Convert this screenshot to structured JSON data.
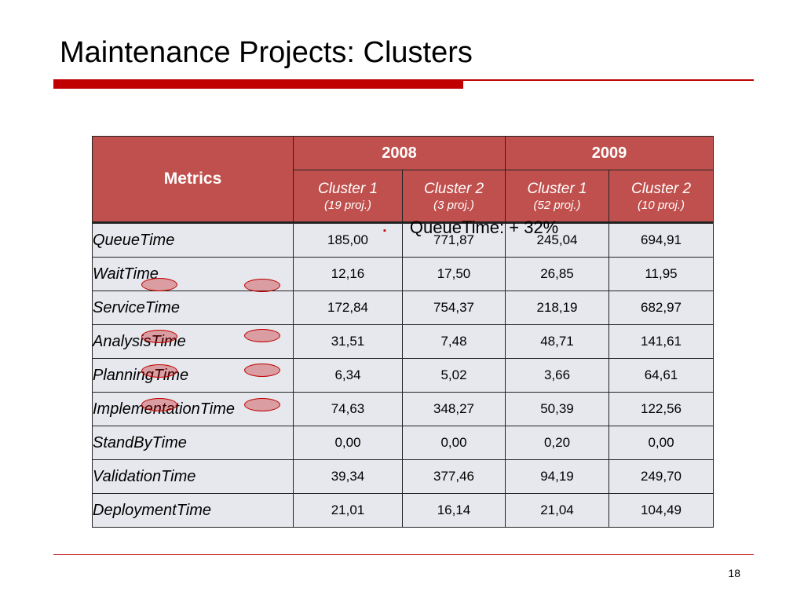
{
  "slide": {
    "title": "Maintenance Projects: Clusters",
    "page_number": "18"
  },
  "colors": {
    "accent": "#c00000",
    "header_fill": "#c0504d",
    "row_fill": "#e6e8ee"
  },
  "bullet": {
    "icon": "square-bullet-icon",
    "marker": "▪",
    "text": "QueueTime: + 32%"
  },
  "table": {
    "metrics_header": "Metrics",
    "years": [
      "2008",
      "2009"
    ],
    "clusters": [
      {
        "name": "Cluster 1",
        "count": "(19 proj.)"
      },
      {
        "name": "Cluster 2",
        "count": "(3 proj.)"
      },
      {
        "name": "Cluster 1",
        "count": "(52 proj.)"
      },
      {
        "name": "Cluster 2",
        "count": "(10 proj.)"
      }
    ],
    "rows": [
      {
        "metric": "QueueTime",
        "values": [
          "185,00",
          "771,87",
          "245,04",
          "694,91"
        ]
      },
      {
        "metric": "WaitTime",
        "values": [
          "12,16",
          "17,50",
          "26,85",
          "11,95"
        ]
      },
      {
        "metric": "ServiceTime",
        "values": [
          "172,84",
          "754,37",
          "218,19",
          "682,97"
        ]
      },
      {
        "metric": "AnalysisTime",
        "values": [
          "31,51",
          "7,48",
          "48,71",
          "141,61"
        ]
      },
      {
        "metric": "PlanningTime",
        "values": [
          "6,34",
          "5,02",
          "3,66",
          "64,61"
        ]
      },
      {
        "metric": "ImplementationTime",
        "values": [
          "74,63",
          "348,27",
          "50,39",
          "122,56"
        ]
      },
      {
        "metric": "StandByTime",
        "values": [
          "0,00",
          "0,00",
          "0,20",
          "0,00"
        ]
      },
      {
        "metric": "ValidationTime",
        "values": [
          "39,34",
          "377,46",
          "94,19",
          "249,70"
        ]
      },
      {
        "metric": "DeploymentTime",
        "values": [
          "21,01",
          "16,14",
          "21,04",
          "104,49"
        ]
      }
    ]
  }
}
